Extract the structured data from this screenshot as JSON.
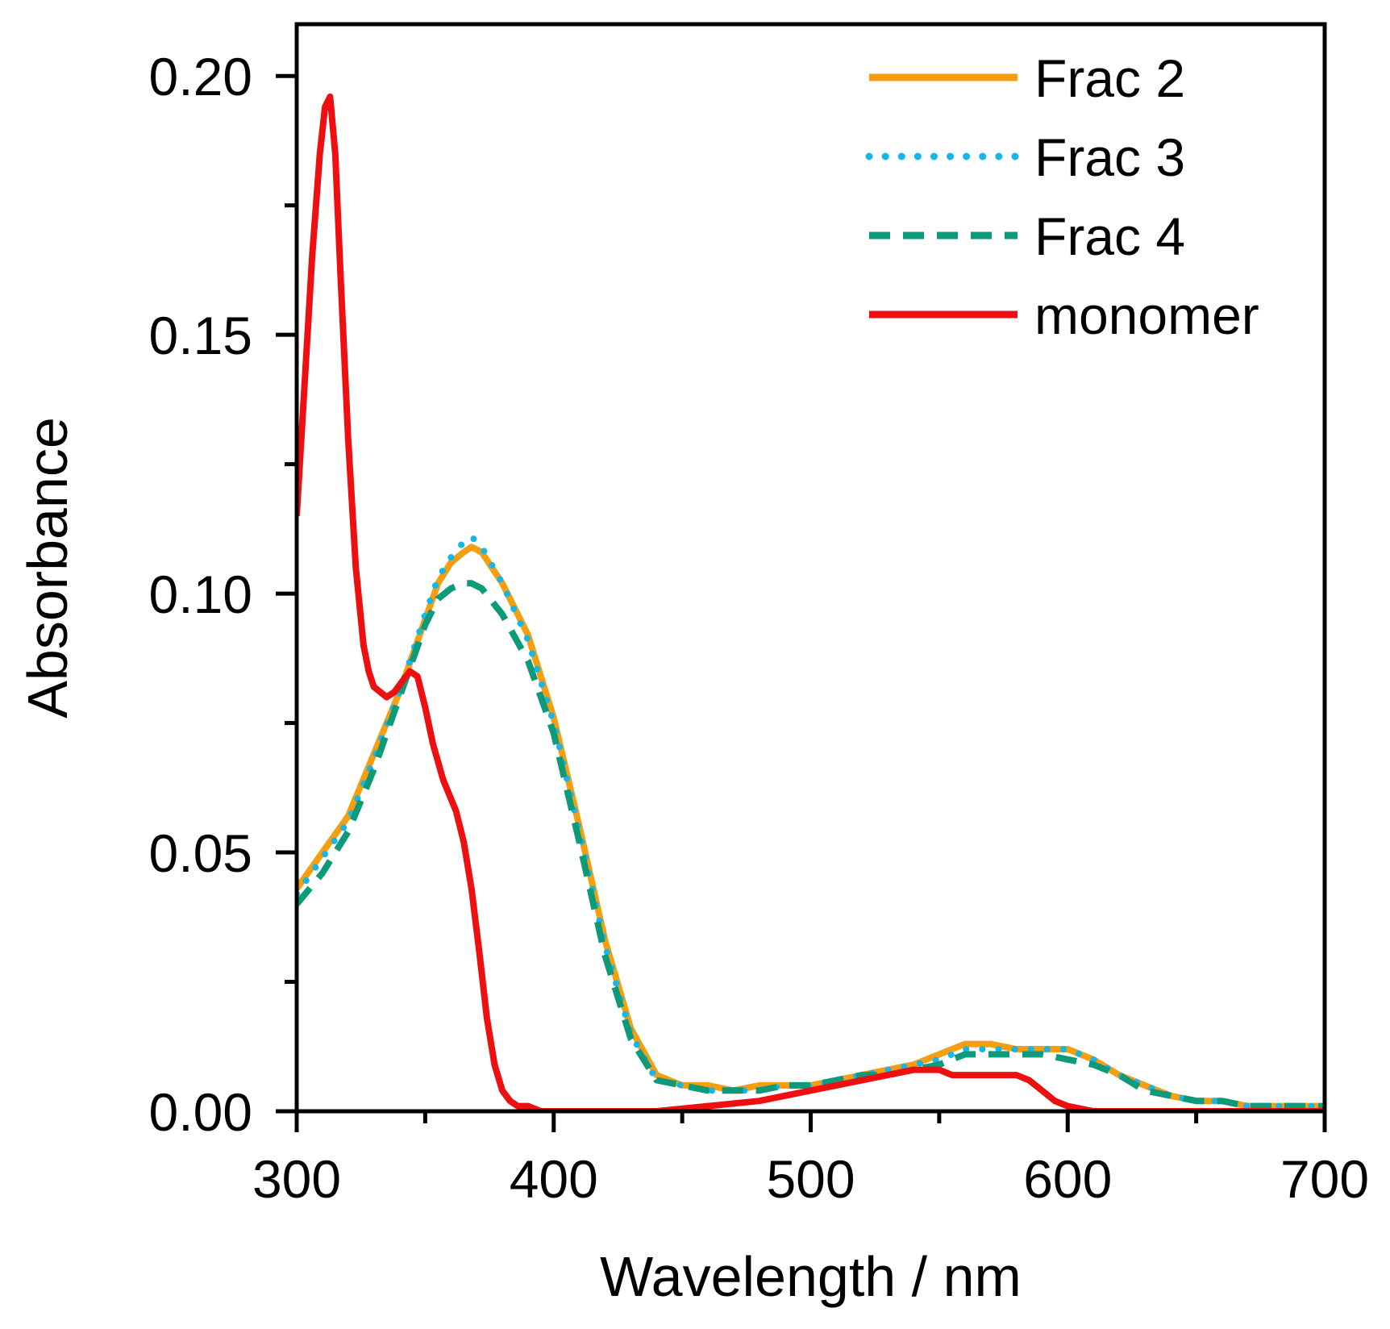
{
  "chart_data": {
    "type": "line",
    "title": "",
    "xlabel": "Wavelength / nm",
    "ylabel": "Absorbance",
    "xlim": [
      300,
      700
    ],
    "ylim": [
      0,
      0.21
    ],
    "xticks": [
      300,
      400,
      500,
      600,
      700
    ],
    "xtick_labels": [
      "300",
      "400",
      "500",
      "600",
      "700"
    ],
    "x_minor_ticks": [
      350,
      450,
      550,
      650
    ],
    "yticks": [
      0,
      0.05,
      0.1,
      0.15,
      0.2
    ],
    "ytick_labels": [
      "0.00",
      "0.05",
      "0.10",
      "0.15",
      "0.20"
    ],
    "y_minor_ticks": [
      0.025,
      0.075,
      0.125,
      0.175
    ],
    "grid": false,
    "legend_position": "top-right",
    "series": [
      {
        "name": "Frac 2",
        "color": "#f59e10",
        "style": "solid",
        "x": [
          300,
          310,
          320,
          330,
          340,
          350,
          355,
          360,
          365,
          368,
          372,
          380,
          390,
          400,
          410,
          420,
          430,
          440,
          450,
          460,
          470,
          480,
          490,
          500,
          510,
          520,
          530,
          540,
          550,
          560,
          570,
          580,
          590,
          600,
          610,
          620,
          630,
          640,
          650,
          660,
          670,
          680,
          690,
          700
        ],
        "y": [
          0.043,
          0.05,
          0.057,
          0.069,
          0.081,
          0.095,
          0.102,
          0.106,
          0.108,
          0.109,
          0.108,
          0.102,
          0.092,
          0.076,
          0.055,
          0.033,
          0.016,
          0.007,
          0.005,
          0.005,
          0.004,
          0.005,
          0.005,
          0.005,
          0.006,
          0.007,
          0.008,
          0.009,
          0.011,
          0.013,
          0.013,
          0.012,
          0.012,
          0.012,
          0.01,
          0.007,
          0.005,
          0.003,
          0.002,
          0.002,
          0.001,
          0.001,
          0.001,
          0.001
        ]
      },
      {
        "name": "Frac 3",
        "color": "#17b6e8",
        "style": "dotted",
        "x": [
          300,
          310,
          320,
          330,
          340,
          350,
          355,
          360,
          365,
          368,
          372,
          380,
          390,
          400,
          410,
          420,
          430,
          440,
          450,
          460,
          470,
          480,
          490,
          500,
          510,
          520,
          530,
          540,
          550,
          560,
          570,
          580,
          590,
          600,
          610,
          620,
          630,
          640,
          650,
          660,
          670,
          680,
          690,
          700
        ],
        "y": [
          0.042,
          0.049,
          0.056,
          0.068,
          0.081,
          0.096,
          0.103,
          0.107,
          0.11,
          0.111,
          0.109,
          0.102,
          0.091,
          0.075,
          0.054,
          0.032,
          0.015,
          0.006,
          0.005,
          0.004,
          0.004,
          0.004,
          0.005,
          0.005,
          0.006,
          0.007,
          0.008,
          0.009,
          0.01,
          0.012,
          0.012,
          0.012,
          0.012,
          0.012,
          0.01,
          0.007,
          0.005,
          0.003,
          0.002,
          0.002,
          0.001,
          0.001,
          0.001,
          0.001
        ]
      },
      {
        "name": "Frac 4",
        "color": "#0c9a7a",
        "style": "dashed",
        "x": [
          300,
          310,
          320,
          330,
          340,
          350,
          355,
          360,
          365,
          368,
          372,
          380,
          390,
          400,
          410,
          420,
          430,
          440,
          450,
          460,
          470,
          480,
          490,
          500,
          510,
          520,
          530,
          540,
          550,
          560,
          570,
          580,
          590,
          600,
          610,
          620,
          630,
          640,
          650,
          660,
          670,
          680,
          690,
          700
        ],
        "y": [
          0.04,
          0.046,
          0.054,
          0.066,
          0.08,
          0.094,
          0.099,
          0.101,
          0.102,
          0.102,
          0.101,
          0.096,
          0.087,
          0.073,
          0.052,
          0.03,
          0.014,
          0.006,
          0.005,
          0.004,
          0.004,
          0.004,
          0.005,
          0.005,
          0.006,
          0.007,
          0.007,
          0.008,
          0.009,
          0.011,
          0.011,
          0.011,
          0.011,
          0.01,
          0.009,
          0.007,
          0.004,
          0.003,
          0.002,
          0.002,
          0.001,
          0.001,
          0.001,
          0.001
        ]
      },
      {
        "name": "monomer",
        "color": "#ee1010",
        "style": "solid",
        "x": [
          300,
          303,
          306,
          309,
          311,
          313,
          315,
          317,
          320,
          323,
          326,
          328,
          330,
          335,
          338,
          341,
          344,
          347,
          350,
          353,
          357,
          362,
          365,
          368,
          371,
          374,
          377,
          380,
          383,
          386,
          390,
          395,
          400,
          420,
          440,
          460,
          480,
          500,
          510,
          520,
          530,
          540,
          545,
          550,
          555,
          560,
          565,
          570,
          575,
          580,
          585,
          590,
          595,
          600,
          610,
          620,
          650,
          700
        ],
        "y": [
          0.115,
          0.14,
          0.165,
          0.185,
          0.194,
          0.196,
          0.185,
          0.162,
          0.13,
          0.105,
          0.09,
          0.085,
          0.082,
          0.08,
          0.081,
          0.083,
          0.085,
          0.084,
          0.078,
          0.071,
          0.064,
          0.058,
          0.052,
          0.043,
          0.031,
          0.018,
          0.009,
          0.004,
          0.002,
          0.001,
          0.001,
          0.0,
          0.0,
          0.0,
          0.0,
          0.001,
          0.002,
          0.004,
          0.005,
          0.006,
          0.007,
          0.008,
          0.008,
          0.008,
          0.007,
          0.007,
          0.007,
          0.007,
          0.007,
          0.007,
          0.006,
          0.004,
          0.002,
          0.001,
          0.0,
          0.0,
          0.0,
          0.0
        ]
      }
    ]
  }
}
